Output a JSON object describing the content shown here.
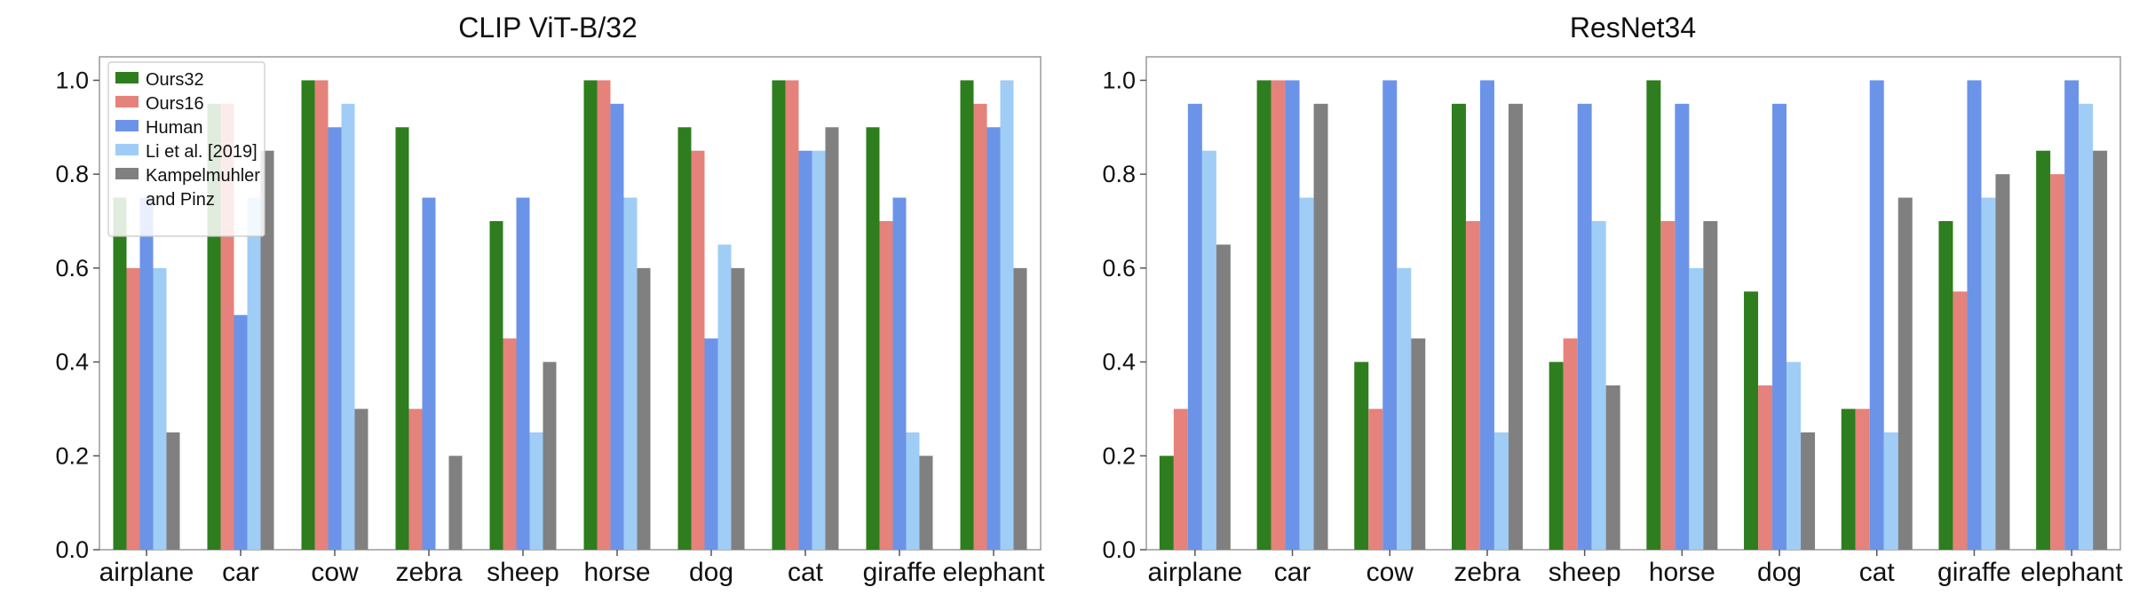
{
  "colors": {
    "Ours32": "#2e7d1e",
    "Ours16": "#e5827b",
    "Human": "#6b94e8",
    "Li et al. [2019]": "#9fcdf6",
    "Kampelmuhler and Pinz": "#808080"
  },
  "chart_data": [
    {
      "type": "bar",
      "title": "CLIP ViT-B/32",
      "xlabel": "",
      "ylabel": "",
      "ylim": [
        0,
        1.05
      ],
      "yticks": [
        "0.0",
        "0.2",
        "0.4",
        "0.6",
        "0.8",
        "1.0"
      ],
      "grid": false,
      "legend": {
        "placement": "top-left",
        "entries": [
          "Ours32",
          "Ours16",
          "Human",
          "Li et al. [2019]",
          "Kampelmuhler",
          "and Pinz"
        ]
      },
      "categories": [
        "airplane",
        "car",
        "cow",
        "zebra",
        "sheep",
        "horse",
        "dog",
        "cat",
        "giraffe",
        "elephant"
      ],
      "series": [
        {
          "name": "Ours32",
          "values": [
            0.75,
            0.95,
            1.0,
            0.9,
            0.7,
            1.0,
            0.9,
            1.0,
            0.9,
            1.0
          ]
        },
        {
          "name": "Ours16",
          "values": [
            0.6,
            0.95,
            1.0,
            0.3,
            0.45,
            1.0,
            0.85,
            1.0,
            0.7,
            0.95
          ]
        },
        {
          "name": "Human",
          "values": [
            0.75,
            0.5,
            0.9,
            0.75,
            0.75,
            0.95,
            0.45,
            0.85,
            0.75,
            0.9
          ]
        },
        {
          "name": "Li et al. [2019]",
          "values": [
            0.6,
            0.75,
            0.95,
            0.0,
            0.25,
            0.75,
            0.65,
            0.85,
            0.25,
            1.0
          ]
        },
        {
          "name": "Kampelmuhler and Pinz",
          "values": [
            0.25,
            0.85,
            0.3,
            0.2,
            0.4,
            0.6,
            0.6,
            0.9,
            0.2,
            0.6
          ]
        }
      ]
    },
    {
      "type": "bar",
      "title": "ResNet34",
      "xlabel": "",
      "ylabel": "",
      "ylim": [
        0,
        1.05
      ],
      "yticks": [
        "0.0",
        "0.2",
        "0.4",
        "0.6",
        "0.8",
        "1.0"
      ],
      "grid": false,
      "categories": [
        "airplane",
        "car",
        "cow",
        "zebra",
        "sheep",
        "horse",
        "dog",
        "cat",
        "giraffe",
        "elephant"
      ],
      "series": [
        {
          "name": "Ours32",
          "values": [
            0.2,
            1.0,
            0.4,
            0.95,
            0.4,
            1.0,
            0.55,
            0.3,
            0.7,
            0.85
          ]
        },
        {
          "name": "Ours16",
          "values": [
            0.3,
            1.0,
            0.3,
            0.7,
            0.45,
            0.7,
            0.35,
            0.3,
            0.55,
            0.8
          ]
        },
        {
          "name": "Human",
          "values": [
            0.95,
            1.0,
            1.0,
            1.0,
            0.95,
            0.95,
            0.95,
            1.0,
            1.0,
            1.0
          ]
        },
        {
          "name": "Li et al. [2019]",
          "values": [
            0.85,
            0.75,
            0.6,
            0.25,
            0.7,
            0.6,
            0.4,
            0.25,
            0.75,
            0.95
          ]
        },
        {
          "name": "Kampelmuhler and Pinz",
          "values": [
            0.65,
            0.95,
            0.45,
            0.95,
            0.35,
            0.7,
            0.25,
            0.75,
            0.8,
            0.85
          ]
        }
      ]
    }
  ]
}
